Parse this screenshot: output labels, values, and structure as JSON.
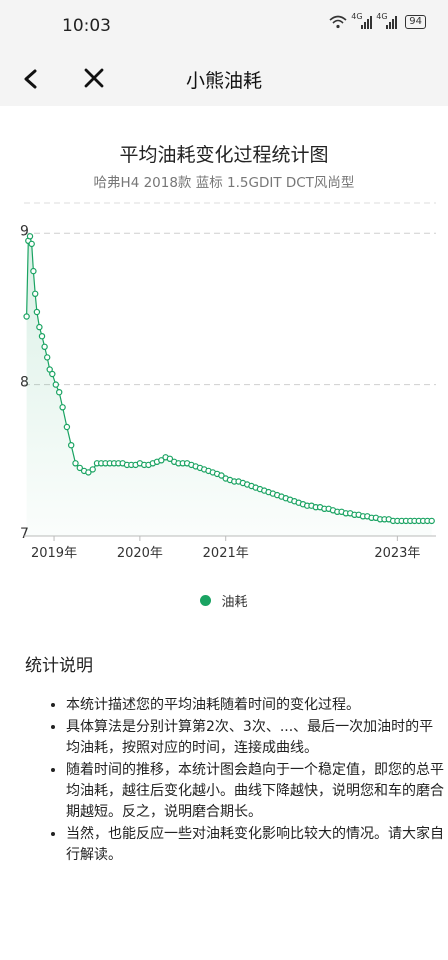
{
  "status_bar": {
    "time": "10:03",
    "network_1": "4G",
    "network_2": "4G",
    "battery": "94"
  },
  "nav": {
    "title": "小熊油耗"
  },
  "chart_header": {
    "title": "平均油耗变化过程统计图",
    "subtitle": "哈弗H4 2018款 蓝标 1.5GDIT DCT风尚型"
  },
  "legend": {
    "label": "油耗"
  },
  "colors": {
    "accent": "#1aa362"
  },
  "chart_data": {
    "type": "area",
    "title": "平均油耗变化过程统计图",
    "x_is_year": true,
    "xlim": [
      2018.65,
      2023.45
    ],
    "ylim": [
      7,
      9.2
    ],
    "yticks": [
      7,
      8,
      9
    ],
    "xticks": [
      "2019年",
      "2020年",
      "2021年",
      "2023年"
    ],
    "xtick_values": [
      2019.0,
      2020.0,
      2021.0,
      2023.0
    ],
    "grid": true,
    "legend": "bottom-center",
    "series": [
      {
        "name": "油耗",
        "x": [
          2018.68,
          2018.7,
          2018.72,
          2018.74,
          2018.76,
          2018.78,
          2018.8,
          2018.83,
          2018.86,
          2018.89,
          2018.92,
          2018.95,
          2018.98,
          2019.02,
          2019.06,
          2019.1,
          2019.15,
          2019.2,
          2019.25,
          2019.3,
          2019.35,
          2019.4,
          2019.45,
          2019.5,
          2019.55,
          2019.6,
          2019.65,
          2019.7,
          2019.75,
          2019.8,
          2019.85,
          2019.9,
          2019.95,
          2020.0,
          2020.05,
          2020.1,
          2020.15,
          2020.2,
          2020.25,
          2020.3,
          2020.35,
          2020.4,
          2020.45,
          2020.5,
          2020.55,
          2020.6,
          2020.65,
          2020.7,
          2020.75,
          2020.8,
          2020.85,
          2020.9,
          2020.95,
          2021.0,
          2021.05,
          2021.1,
          2021.15,
          2021.2,
          2021.25,
          2021.3,
          2021.35,
          2021.4,
          2021.45,
          2021.5,
          2021.55,
          2021.6,
          2021.65,
          2021.7,
          2021.75,
          2021.8,
          2021.85,
          2021.9,
          2021.95,
          2022.0,
          2022.05,
          2022.1,
          2022.15,
          2022.2,
          2022.25,
          2022.3,
          2022.35,
          2022.4,
          2022.45,
          2022.5,
          2022.55,
          2022.6,
          2022.65,
          2022.7,
          2022.75,
          2022.8,
          2022.85,
          2022.9,
          2022.95,
          2023.0,
          2023.05,
          2023.1,
          2023.15,
          2023.2,
          2023.25,
          2023.3,
          2023.35,
          2023.4
        ],
        "values": [
          8.45,
          8.95,
          8.98,
          8.93,
          8.75,
          8.6,
          8.48,
          8.38,
          8.32,
          8.25,
          8.18,
          8.1,
          8.07,
          8.0,
          7.95,
          7.85,
          7.72,
          7.6,
          7.48,
          7.45,
          7.43,
          7.42,
          7.44,
          7.48,
          7.48,
          7.48,
          7.48,
          7.48,
          7.48,
          7.48,
          7.47,
          7.47,
          7.47,
          7.48,
          7.47,
          7.47,
          7.48,
          7.49,
          7.5,
          7.52,
          7.51,
          7.49,
          7.48,
          7.48,
          7.48,
          7.47,
          7.46,
          7.45,
          7.44,
          7.43,
          7.42,
          7.41,
          7.4,
          7.38,
          7.37,
          7.36,
          7.36,
          7.35,
          7.34,
          7.33,
          7.32,
          7.31,
          7.3,
          7.29,
          7.28,
          7.27,
          7.26,
          7.25,
          7.24,
          7.23,
          7.22,
          7.21,
          7.2,
          7.2,
          7.19,
          7.19,
          7.18,
          7.18,
          7.17,
          7.16,
          7.16,
          7.15,
          7.15,
          7.14,
          7.14,
          7.13,
          7.13,
          7.12,
          7.12,
          7.11,
          7.11,
          7.11,
          7.1,
          7.1,
          7.1,
          7.1,
          7.1,
          7.1,
          7.1,
          7.1,
          7.1,
          7.1
        ]
      }
    ]
  },
  "explanation": {
    "title": "统计说明",
    "items": [
      "本统计描述您的平均油耗随着时间的变化过程。",
      "具体算法是分别计算第2次、3次、...、最后一次加油时的平均油耗，按照对应的时间，连接成曲线。",
      "随着时间的推移，本统计图会趋向于一个稳定值，即您的总平均油耗，越往后变化越小。曲线下降越快，说明您和车的磨合期越短。反之，说明磨合期长。",
      "当然，也能反应一些对油耗变化影响比较大的情况。请大家自行解读。"
    ]
  }
}
